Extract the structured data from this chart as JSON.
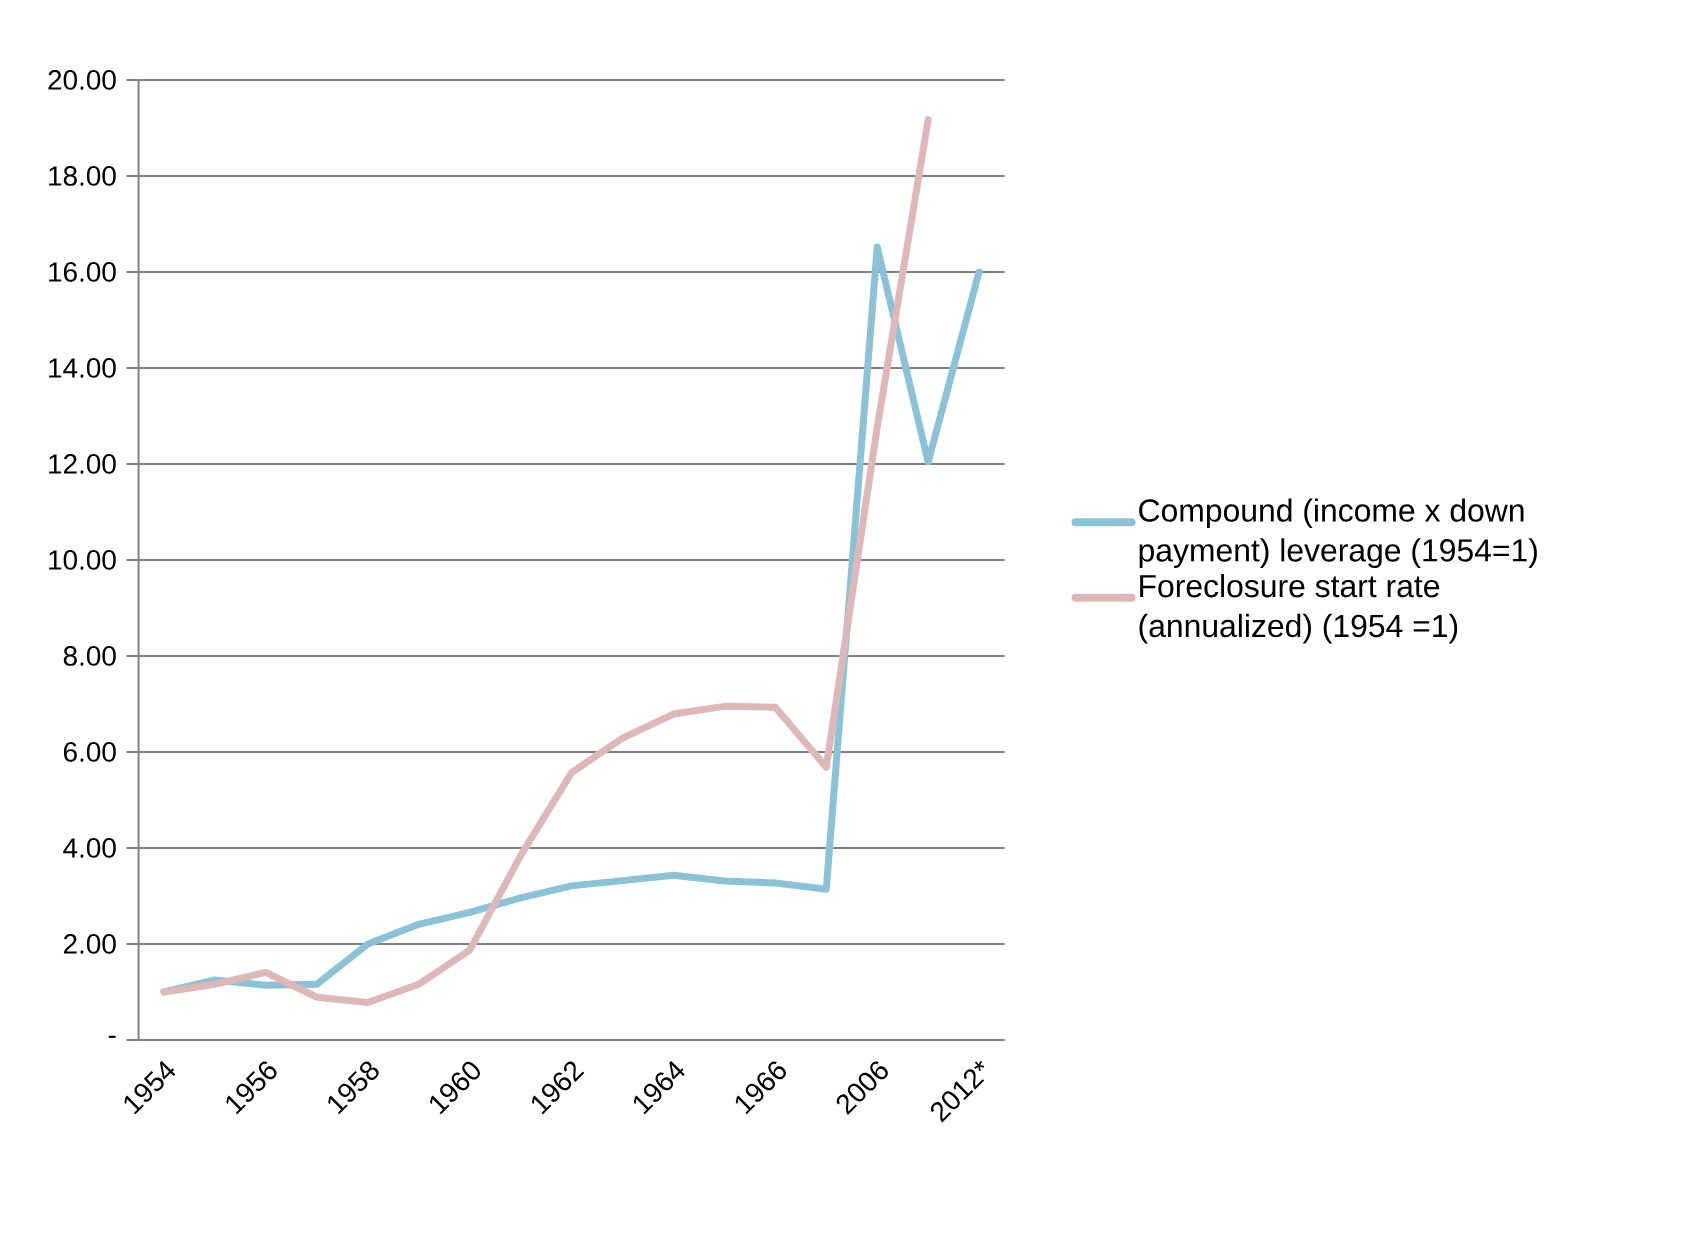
{
  "chart_data": {
    "type": "line",
    "categories": [
      "1954",
      null,
      "1956",
      null,
      "1958",
      null,
      "1960",
      null,
      "1962",
      null,
      "1964",
      null,
      "1966",
      null,
      "2006",
      null,
      "2012*"
    ],
    "series": [
      {
        "name": "Compound (income x down payment) leverage (1954=1)",
        "color": "#8dc2d6",
        "values": [
          1.0,
          1.25,
          1.14,
          1.16,
          2.0,
          2.41,
          2.66,
          2.96,
          3.21,
          3.32,
          3.43,
          3.31,
          3.27,
          3.14,
          16.52,
          12.04,
          16.0
        ]
      },
      {
        "name": "Foreclosure start rate (annualized) (1954 =1)",
        "color": "#ddb8b8",
        "values": [
          1.0,
          1.16,
          1.41,
          0.89,
          0.78,
          1.16,
          1.87,
          3.84,
          5.57,
          6.29,
          6.79,
          6.95,
          6.93,
          5.68,
          12.76,
          19.17,
          null
        ]
      }
    ],
    "ylim": [
      0,
      20
    ],
    "yticks": [
      {
        "value": 0,
        "label": "-"
      },
      {
        "value": 2,
        "label": "2.00"
      },
      {
        "value": 4,
        "label": "4.00"
      },
      {
        "value": 6,
        "label": "6.00"
      },
      {
        "value": 8,
        "label": "8.00"
      },
      {
        "value": 10,
        "label": "10.00"
      },
      {
        "value": 12,
        "label": "12.00"
      },
      {
        "value": 14,
        "label": "14.00"
      },
      {
        "value": 16,
        "label": "16.00"
      },
      {
        "value": 18,
        "label": "18.00"
      },
      {
        "value": 20,
        "label": "20.00"
      }
    ],
    "grid": "y",
    "legend": "right",
    "marker": "none",
    "line_style": "solid"
  }
}
